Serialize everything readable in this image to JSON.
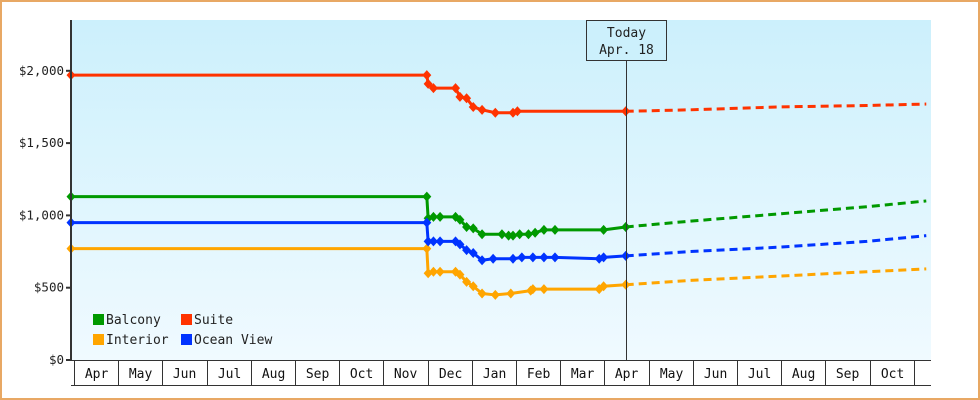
{
  "chart_data": {
    "type": "line",
    "title": "",
    "xlabel": "",
    "ylabel": "",
    "ylim": [
      0,
      2350
    ],
    "y_ticks": [
      {
        "value": 0,
        "label": "$0"
      },
      {
        "value": 500,
        "label": "$500"
      },
      {
        "value": 1000,
        "label": "$1,000"
      },
      {
        "value": 1500,
        "label": "$1,500"
      },
      {
        "value": 2000,
        "label": "$2,000"
      }
    ],
    "x_months": [
      "Apr",
      "May",
      "Jun",
      "Jul",
      "Aug",
      "Sep",
      "Oct",
      "Nov",
      "Dec",
      "Jan",
      "Feb",
      "Mar",
      "Apr",
      "May",
      "Jun",
      "Jul",
      "Aug",
      "Sep",
      "Oct"
    ],
    "today_marker": {
      "line1": "Today",
      "line2": "Apr. 18",
      "month_index": 12.55
    },
    "grid": false,
    "legend_position": "lower-left",
    "series": [
      {
        "name": "Balcony",
        "color": "#009900",
        "history": [
          [
            0,
            1130
          ],
          [
            8.05,
            1130
          ],
          [
            8.08,
            980
          ],
          [
            8.2,
            990
          ],
          [
            8.35,
            990
          ],
          [
            8.7,
            990
          ],
          [
            8.8,
            970
          ],
          [
            8.95,
            920
          ],
          [
            9.1,
            910
          ],
          [
            9.3,
            870
          ],
          [
            9.75,
            870
          ],
          [
            9.9,
            860
          ],
          [
            10.0,
            860
          ],
          [
            10.15,
            870
          ],
          [
            10.35,
            870
          ],
          [
            10.5,
            880
          ],
          [
            10.7,
            900
          ],
          [
            10.95,
            900
          ],
          [
            12.05,
            900
          ],
          [
            12.55,
            920
          ]
        ],
        "forecast": [
          [
            12.55,
            920
          ],
          [
            14.0,
            960
          ],
          [
            16.0,
            1010
          ],
          [
            18.0,
            1060
          ],
          [
            19.35,
            1100
          ]
        ]
      },
      {
        "name": "Suite",
        "color": "#ff3300",
        "history": [
          [
            0,
            1970
          ],
          [
            8.05,
            1970
          ],
          [
            8.08,
            1910
          ],
          [
            8.2,
            1880
          ],
          [
            8.7,
            1880
          ],
          [
            8.8,
            1820
          ],
          [
            8.95,
            1810
          ],
          [
            9.1,
            1750
          ],
          [
            9.3,
            1730
          ],
          [
            9.6,
            1710
          ],
          [
            10.0,
            1710
          ],
          [
            10.1,
            1720
          ],
          [
            12.55,
            1720
          ]
        ],
        "forecast": [
          [
            12.55,
            1720
          ],
          [
            14.0,
            1730
          ],
          [
            16.0,
            1750
          ],
          [
            18.0,
            1760
          ],
          [
            19.35,
            1770
          ]
        ]
      },
      {
        "name": "Interior",
        "color": "#ffa500",
        "history": [
          [
            0,
            770
          ],
          [
            8.05,
            770
          ],
          [
            8.08,
            600
          ],
          [
            8.2,
            610
          ],
          [
            8.35,
            610
          ],
          [
            8.7,
            610
          ],
          [
            8.8,
            590
          ],
          [
            8.95,
            540
          ],
          [
            9.1,
            510
          ],
          [
            9.3,
            460
          ],
          [
            9.6,
            450
          ],
          [
            9.95,
            460
          ],
          [
            10.4,
            480
          ],
          [
            10.45,
            490
          ],
          [
            10.7,
            490
          ],
          [
            11.95,
            490
          ],
          [
            12.05,
            510
          ],
          [
            12.55,
            520
          ]
        ],
        "forecast": [
          [
            12.55,
            520
          ],
          [
            14.0,
            550
          ],
          [
            16.0,
            580
          ],
          [
            18.0,
            610
          ],
          [
            19.35,
            630
          ]
        ]
      },
      {
        "name": "Ocean View",
        "color": "#0033ff",
        "history": [
          [
            0,
            950
          ],
          [
            8.05,
            950
          ],
          [
            8.08,
            820
          ],
          [
            8.2,
            820
          ],
          [
            8.35,
            820
          ],
          [
            8.7,
            820
          ],
          [
            8.8,
            800
          ],
          [
            8.95,
            760
          ],
          [
            9.1,
            740
          ],
          [
            9.3,
            690
          ],
          [
            9.55,
            700
          ],
          [
            10.0,
            700
          ],
          [
            10.2,
            710
          ],
          [
            10.45,
            710
          ],
          [
            10.7,
            710
          ],
          [
            10.95,
            710
          ],
          [
            11.95,
            700
          ],
          [
            12.05,
            710
          ],
          [
            12.55,
            720
          ]
        ],
        "forecast": [
          [
            12.55,
            720
          ],
          [
            14.0,
            750
          ],
          [
            16.0,
            780
          ],
          [
            18.0,
            820
          ],
          [
            19.35,
            860
          ]
        ]
      }
    ]
  },
  "legend": {
    "items": [
      {
        "label": "Balcony",
        "color": "#009900"
      },
      {
        "label": "Suite",
        "color": "#ff3300"
      },
      {
        "label": "Interior",
        "color": "#ffa500"
      },
      {
        "label": "Ocean View",
        "color": "#0033ff"
      }
    ]
  },
  "style": {
    "frame_color": "#e8a864",
    "plot_bg_top": "#ccf0fc",
    "plot_bg_bottom": "#f0faff",
    "axis_color": "#333333"
  }
}
